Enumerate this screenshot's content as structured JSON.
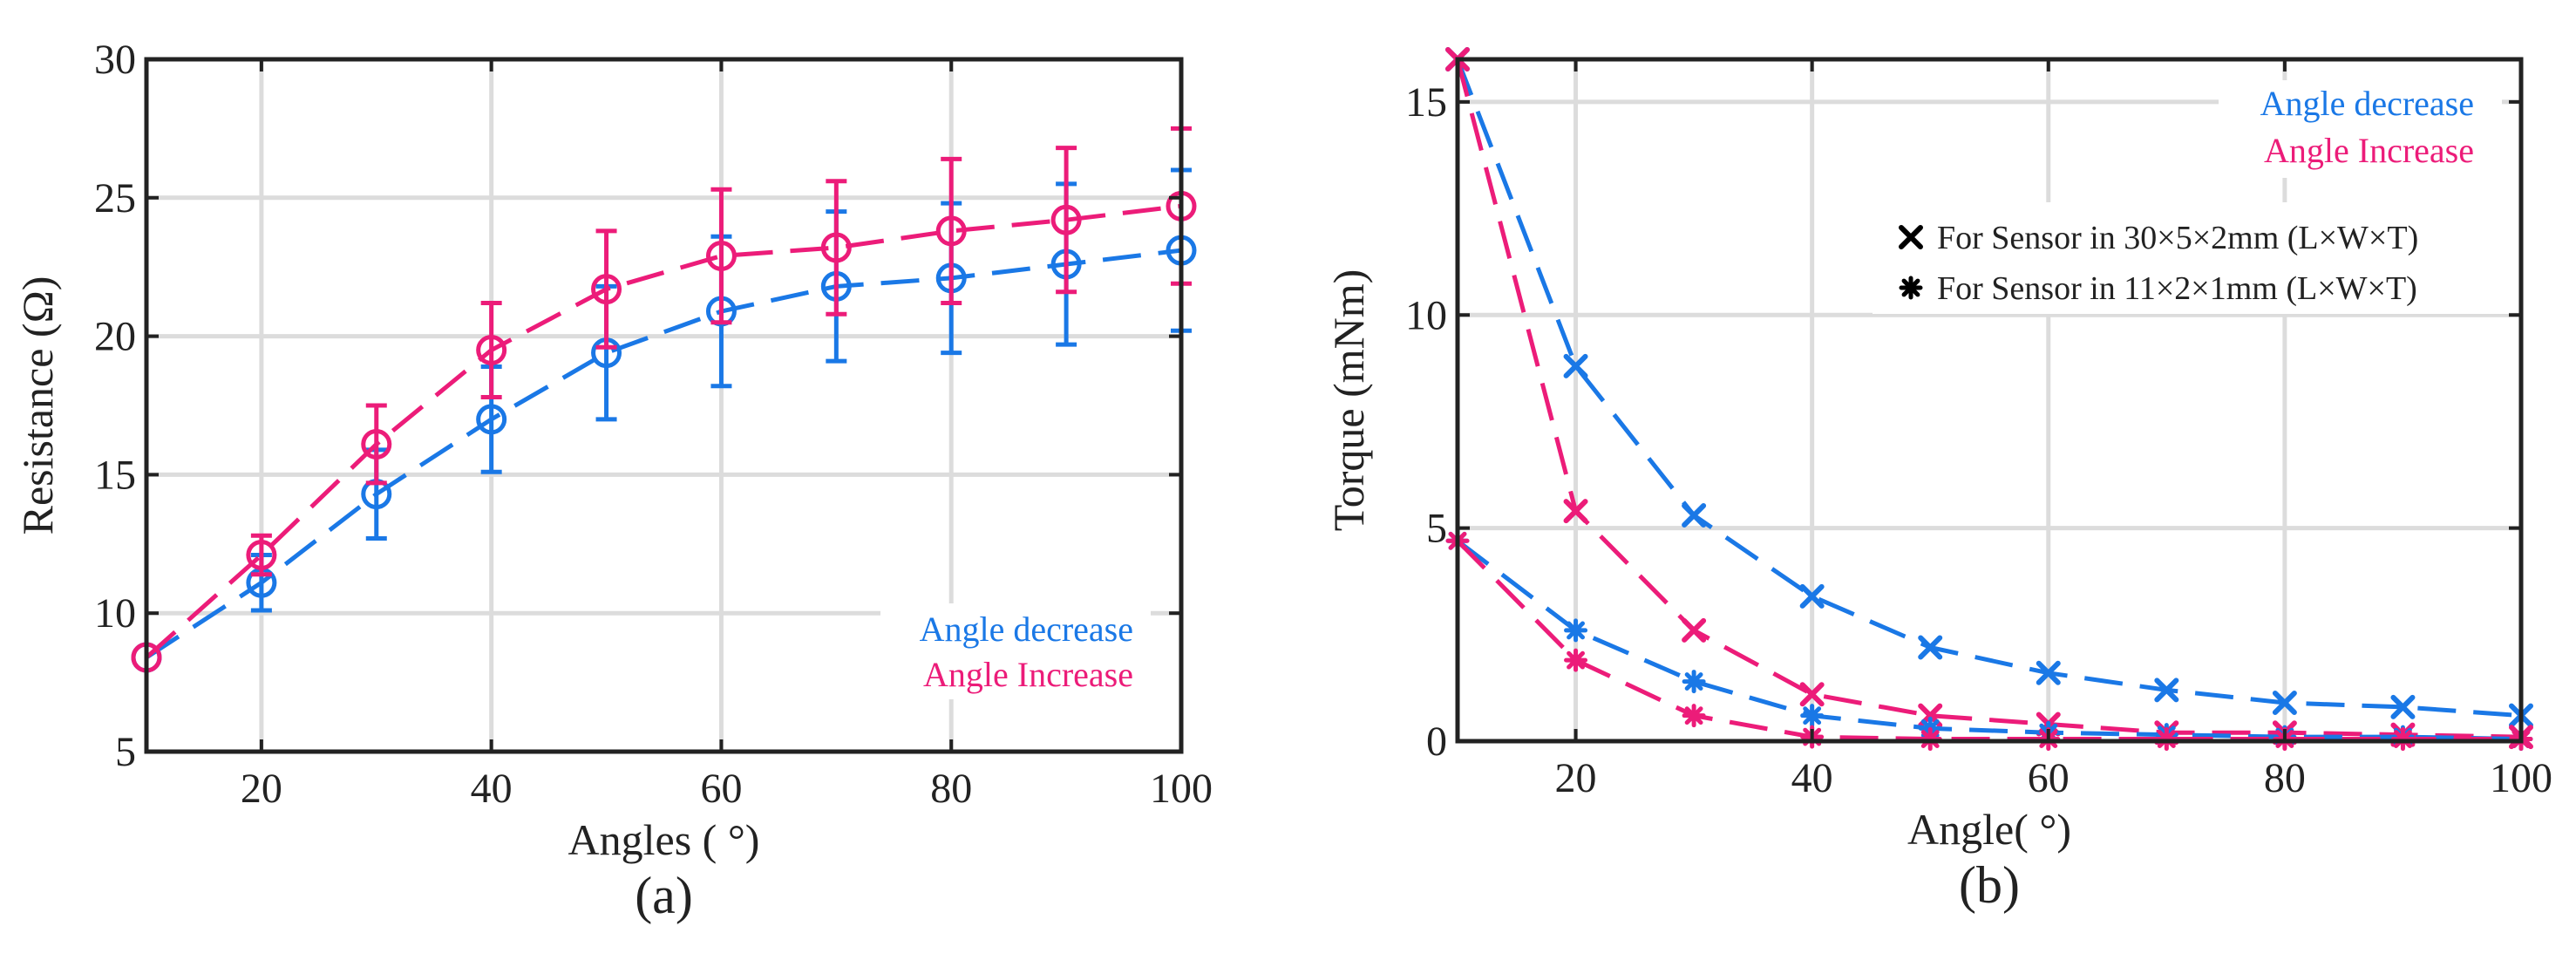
{
  "colors": {
    "decrease": "#1A78E6",
    "increase": "#EC1C79",
    "grid": "#dcdcdc",
    "axis": "#222222",
    "marker": "#000000"
  },
  "chart_data": [
    {
      "type": "line",
      "panel_label": "(a)",
      "xlabel": "Angles ( °)",
      "ylabel": "Resistance (Ω)",
      "xlim": [
        10,
        100
      ],
      "ylim": [
        5,
        30
      ],
      "xticks": [
        20,
        40,
        60,
        80,
        100
      ],
      "yticks": [
        5,
        10,
        15,
        20,
        25,
        30
      ],
      "grid": true,
      "legend_position": "bottom-right",
      "x": [
        10,
        20,
        30,
        40,
        50,
        60,
        70,
        80,
        90,
        100
      ],
      "series": [
        {
          "name": "Angle decrease",
          "color_key": "decrease",
          "marker": "circle",
          "values": [
            8.4,
            11.1,
            14.3,
            17.0,
            19.4,
            20.9,
            21.8,
            22.1,
            22.6,
            23.1
          ],
          "error": [
            0,
            1.0,
            1.6,
            1.9,
            2.4,
            2.7,
            2.7,
            2.7,
            2.9,
            2.9
          ]
        },
        {
          "name": "Angle Increase",
          "color_key": "increase",
          "marker": "circle",
          "values": [
            8.4,
            12.1,
            16.1,
            19.5,
            21.7,
            22.9,
            23.2,
            23.8,
            24.2,
            24.7
          ],
          "error": [
            0,
            0.7,
            1.4,
            1.7,
            2.1,
            2.4,
            2.4,
            2.6,
            2.6,
            2.8
          ]
        }
      ]
    },
    {
      "type": "line",
      "panel_label": "(b)",
      "xlabel": "Angle( °)",
      "ylabel": "Torque (mNm)",
      "xlim": [
        10,
        100
      ],
      "ylim": [
        0,
        16
      ],
      "xticks": [
        20,
        40,
        60,
        80,
        100
      ],
      "yticks": [
        0,
        5,
        10,
        15
      ],
      "grid": true,
      "legend_position": "top-right",
      "legend_colors": [
        "Angle decrease",
        "Angle Increase"
      ],
      "legend_markers": [
        {
          "marker": "x",
          "label": "For Sensor in 30×5×2mm (L×W×T)"
        },
        {
          "marker": "asterisk",
          "label": "For Sensor in 11×2×1mm (L×W×T)"
        }
      ],
      "x": [
        10,
        20,
        30,
        40,
        50,
        60,
        70,
        80,
        90,
        100
      ],
      "series": [
        {
          "name": "Angle decrease (30×5×2mm)",
          "color_key": "decrease",
          "marker": "x",
          "values": [
            16.0,
            8.8,
            5.3,
            3.4,
            2.2,
            1.6,
            1.2,
            0.9,
            0.8,
            0.6
          ]
        },
        {
          "name": "Angle Increase (30×5×2mm)",
          "color_key": "increase",
          "marker": "x",
          "values": [
            16.0,
            5.4,
            2.6,
            1.1,
            0.6,
            0.4,
            0.2,
            0.2,
            0.15,
            0.1
          ]
        },
        {
          "name": "Angle decrease (11×2×1mm)",
          "color_key": "decrease",
          "marker": "asterisk",
          "values": [
            4.7,
            2.6,
            1.4,
            0.6,
            0.3,
            0.2,
            0.15,
            0.1,
            0.1,
            0.05
          ]
        },
        {
          "name": "Angle Increase (11×2×1mm)",
          "color_key": "increase",
          "marker": "asterisk",
          "values": [
            4.7,
            1.9,
            0.6,
            0.1,
            0.05,
            0.05,
            0.05,
            0.05,
            0.05,
            0.05
          ]
        }
      ]
    }
  ]
}
